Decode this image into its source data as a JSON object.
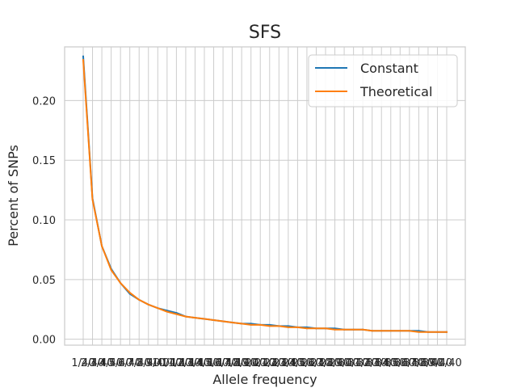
{
  "chart_data": {
    "type": "line",
    "title": "SFS",
    "xlabel": "Allele frequency",
    "ylabel": "Percent of SNPs",
    "categories": [
      "1/40",
      "2/40",
      "3/40",
      "4/40",
      "5/40",
      "6/40",
      "7/40",
      "8/40",
      "9/40",
      "10/40",
      "11/40",
      "12/40",
      "13/40",
      "14/40",
      "15/40",
      "16/40",
      "17/40",
      "18/40",
      "19/40",
      "20/40",
      "21/40",
      "22/40",
      "23/40",
      "24/40",
      "25/40",
      "26/40",
      "27/40",
      "28/40",
      "29/40",
      "30/40",
      "31/40",
      "32/40",
      "33/40",
      "34/40",
      "35/40",
      "36/40",
      "37/40",
      "38/40",
      "39/40",
      "40/40"
    ],
    "ylim": [
      -0.005,
      0.245
    ],
    "yticks": [
      0.0,
      0.05,
      0.1,
      0.15,
      0.2
    ],
    "ytick_labels": [
      "0.00",
      "0.05",
      "0.10",
      "0.15",
      "0.20"
    ],
    "grid": true,
    "legend_position": "top-right",
    "series": [
      {
        "name": "Constant",
        "color": "#1f77b4",
        "values": [
          0.237,
          0.118,
          0.078,
          0.059,
          0.047,
          0.038,
          0.033,
          0.029,
          0.026,
          0.024,
          0.022,
          0.019,
          0.018,
          0.017,
          0.016,
          0.015,
          0.014,
          0.013,
          0.013,
          0.012,
          0.012,
          0.011,
          0.011,
          0.01,
          0.01,
          0.009,
          0.009,
          0.009,
          0.008,
          0.008,
          0.008,
          0.007,
          0.007,
          0.007,
          0.007,
          0.007,
          0.007,
          0.006,
          0.006,
          0.006
        ]
      },
      {
        "name": "Theoretical",
        "color": "#ff7f0e",
        "values": [
          0.234,
          0.117,
          0.078,
          0.058,
          0.047,
          0.039,
          0.033,
          0.029,
          0.026,
          0.023,
          0.021,
          0.019,
          0.018,
          0.017,
          0.016,
          0.015,
          0.014,
          0.013,
          0.012,
          0.012,
          0.011,
          0.011,
          0.01,
          0.01,
          0.009,
          0.009,
          0.009,
          0.008,
          0.008,
          0.008,
          0.008,
          0.007,
          0.007,
          0.007,
          0.007,
          0.007,
          0.006,
          0.006,
          0.006,
          0.006
        ]
      }
    ]
  }
}
